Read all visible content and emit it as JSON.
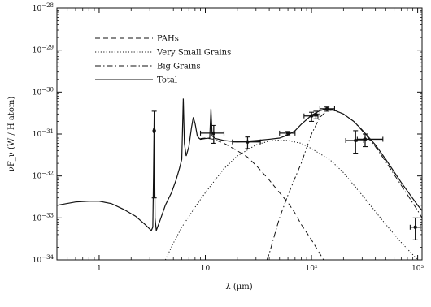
{
  "chart_data": {
    "type": "line",
    "xscale": "log",
    "yscale": "log",
    "xlim": [
      0.4,
      1100
    ],
    "ylim": [
      1e-34,
      1e-28
    ],
    "xlabel": "λ (μm)",
    "ylabel": "νF_ν (W / H atom)",
    "x_ticks": [
      {
        "value": 1,
        "label": "1"
      },
      {
        "value": 10,
        "label": "10"
      },
      {
        "value": 100,
        "label": "10²"
      },
      {
        "value": 1000,
        "label": "10³"
      }
    ],
    "y_ticks": [
      {
        "value": 1e-34,
        "base": "10",
        "exp": "−34"
      },
      {
        "value": 1e-33,
        "base": "10",
        "exp": "−33"
      },
      {
        "value": 1e-32,
        "base": "10",
        "exp": "−32"
      },
      {
        "value": 1e-31,
        "base": "10",
        "exp": "−31"
      },
      {
        "value": 1e-30,
        "base": "10",
        "exp": "−30"
      },
      {
        "value": 1e-29,
        "base": "10",
        "exp": "−29"
      },
      {
        "value": 1e-28,
        "base": "10",
        "exp": "−28"
      }
    ],
    "legend": {
      "position": "top-left",
      "entries": [
        {
          "label": "PAHs",
          "dash": "dashed"
        },
        {
          "label": "Very Small Grains",
          "dash": "dotted"
        },
        {
          "label": "Big Grains",
          "dash": "dashdot"
        },
        {
          "label": "Total",
          "dash": "solid"
        }
      ]
    },
    "series": [
      {
        "name": "PAHs",
        "dash": "dashed",
        "points": [
          [
            9,
            7.8e-32
          ],
          [
            10,
            8e-32
          ],
          [
            12,
            7.5e-32
          ],
          [
            15,
            6e-32
          ],
          [
            20,
            4e-32
          ],
          [
            25,
            2.8e-32
          ],
          [
            30,
            1.8e-32
          ],
          [
            40,
            8e-33
          ],
          [
            50,
            4e-33
          ],
          [
            60,
            2.3e-33
          ],
          [
            70,
            1.3e-33
          ],
          [
            80,
            7e-34
          ],
          [
            100,
            3e-34
          ],
          [
            120,
            1.4e-34
          ],
          [
            130,
            1e-34
          ]
        ]
      },
      {
        "name": "Very Small Grains",
        "dash": "dotted",
        "points": [
          [
            4.2,
            1e-34
          ],
          [
            5,
            2.5e-34
          ],
          [
            6,
            6e-34
          ],
          [
            8,
            1.8e-33
          ],
          [
            10,
            4e-33
          ],
          [
            15,
            1.5e-32
          ],
          [
            20,
            3e-32
          ],
          [
            30,
            5.5e-32
          ],
          [
            40,
            6.8e-32
          ],
          [
            50,
            7.2e-32
          ],
          [
            60,
            7e-32
          ],
          [
            80,
            6e-32
          ],
          [
            100,
            4.5e-32
          ],
          [
            150,
            2.4e-32
          ],
          [
            200,
            1.2e-32
          ],
          [
            300,
            3.5e-33
          ],
          [
            500,
            7e-34
          ],
          [
            700,
            2.6e-34
          ],
          [
            1000,
            9e-35
          ]
        ]
      },
      {
        "name": "Big Grains",
        "dash": "dashdot",
        "points": [
          [
            38,
            1e-34
          ],
          [
            40,
            1.4e-34
          ],
          [
            45,
            4e-34
          ],
          [
            50,
            1e-33
          ],
          [
            60,
            3.5e-33
          ],
          [
            70,
            9e-33
          ],
          [
            80,
            2e-32
          ],
          [
            100,
            1e-31
          ],
          [
            120,
            2.5e-31
          ],
          [
            140,
            3.6e-31
          ],
          [
            160,
            3.7e-31
          ],
          [
            200,
            3e-31
          ],
          [
            250,
            2e-31
          ],
          [
            300,
            1.2e-31
          ],
          [
            400,
            5e-32
          ],
          [
            500,
            2.2e-32
          ],
          [
            700,
            6e-33
          ],
          [
            1000,
            1.5e-33
          ],
          [
            1100,
            1e-33
          ]
        ]
      },
      {
        "name": "Total",
        "dash": "solid",
        "points": [
          [
            0.4,
            2e-33
          ],
          [
            0.6,
            2.4e-33
          ],
          [
            0.8,
            2.5e-33
          ],
          [
            1,
            2.5e-33
          ],
          [
            1.3,
            2.2e-33
          ],
          [
            1.7,
            1.6e-33
          ],
          [
            2.2,
            1.1e-33
          ],
          [
            2.7,
            7e-34
          ],
          [
            3.1,
            5e-34
          ],
          [
            3.2,
            6e-34
          ],
          [
            3.25,
            1e-32
          ],
          [
            3.3,
            3.2e-31
          ],
          [
            3.32,
            1e-31
          ],
          [
            3.36,
            1e-33
          ],
          [
            3.45,
            5e-34
          ],
          [
            3.7,
            8e-34
          ],
          [
            4.2,
            2e-33
          ],
          [
            4.8,
            4e-33
          ],
          [
            5.3,
            8e-33
          ],
          [
            5.7,
            1.5e-32
          ],
          [
            6,
            2.5e-32
          ],
          [
            6.2,
            7e-31
          ],
          [
            6.35,
            6e-32
          ],
          [
            6.6,
            3e-32
          ],
          [
            7,
            5e-32
          ],
          [
            7.4,
            1.4e-31
          ],
          [
            7.7,
            2.5e-31
          ],
          [
            8,
            1.8e-31
          ],
          [
            8.4,
            9e-32
          ],
          [
            8.7,
            8e-32
          ],
          [
            9,
            7.5e-32
          ],
          [
            10,
            7.8e-32
          ],
          [
            11,
            8e-32
          ],
          [
            11.3,
            4e-31
          ],
          [
            11.6,
            9e-32
          ],
          [
            12.5,
            7.8e-32
          ],
          [
            15,
            7e-32
          ],
          [
            20,
            6.5e-32
          ],
          [
            30,
            7e-32
          ],
          [
            40,
            7.5e-32
          ],
          [
            50,
            8e-32
          ],
          [
            60,
            9.5e-32
          ],
          [
            70,
            1.2e-31
          ],
          [
            80,
            1.7e-31
          ],
          [
            100,
            2.8e-31
          ],
          [
            120,
            3.6e-31
          ],
          [
            140,
            4e-31
          ],
          [
            160,
            3.8e-31
          ],
          [
            200,
            3e-31
          ],
          [
            250,
            2e-31
          ],
          [
            300,
            1.25e-31
          ],
          [
            400,
            5.5e-32
          ],
          [
            500,
            2.5e-32
          ],
          [
            700,
            7e-33
          ],
          [
            1000,
            2e-33
          ],
          [
            1100,
            1.5e-33
          ]
        ]
      },
      {
        "name": "Observations",
        "type": "errorbar",
        "points": [
          {
            "x": 3.3,
            "y": 1.2e-31,
            "xlo": 3.25,
            "xhi": 3.35,
            "ylo": 3e-33,
            "yhi": 3.5e-31
          },
          {
            "x": 12,
            "y": 1.05e-31,
            "xlo": 9,
            "xhi": 15,
            "ylo": 6e-32,
            "yhi": 1.6e-31
          },
          {
            "x": 25,
            "y": 6.5e-32,
            "xlo": 18,
            "xhi": 33,
            "ylo": 4.5e-32,
            "yhi": 8.5e-32
          },
          {
            "x": 60,
            "y": 1.05e-31,
            "xlo": 50,
            "xhi": 70,
            "ylo": 9.5e-32,
            "yhi": 1.15e-31
          },
          {
            "x": 100,
            "y": 2.7e-31,
            "xlo": 85,
            "xhi": 115,
            "ylo": 2e-31,
            "yhi": 3.3e-31
          },
          {
            "x": 110,
            "y": 2.9e-31,
            "xlo": 100,
            "xhi": 120,
            "ylo": 2.3e-31,
            "yhi": 3.5e-31
          },
          {
            "x": 140,
            "y": 4e-31,
            "xlo": 120,
            "xhi": 165,
            "ylo": 3.5e-31,
            "yhi": 4.4e-31
          },
          {
            "x": 260,
            "y": 7e-32,
            "xlo": 210,
            "xhi": 310,
            "ylo": 3.5e-32,
            "yhi": 1.2e-31
          },
          {
            "x": 320,
            "y": 7.5e-32,
            "xlo": 270,
            "xhi": 470,
            "ylo": 5e-32,
            "yhi": 1e-31
          },
          {
            "x": 950,
            "y": 6e-34,
            "xlo": 850,
            "xhi": 1060,
            "ylo": 3e-34,
            "yhi": 1e-33
          }
        ]
      }
    ]
  }
}
